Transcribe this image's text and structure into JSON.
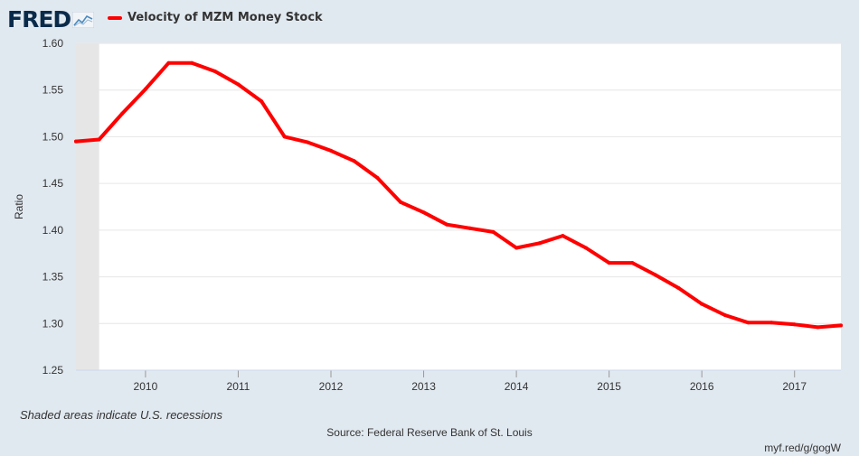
{
  "header": {
    "logo_text": "FRED"
  },
  "colors": {
    "series": "#ff0000",
    "plot_bg": "#ffffff",
    "recession_shade": "#e6e6e6",
    "page_bg": "#e1e9f0",
    "grid": "#e6e6e6"
  },
  "icons": {
    "logo": "fred-logo-chart-icon"
  },
  "footer": {
    "recession_note": "Shaded areas indicate U.S. recessions",
    "source": "Source: Federal Reserve Bank of St. Louis",
    "short_url": "myf.red/g/gogW"
  },
  "chart_data": {
    "type": "line",
    "title": "",
    "xlabel": "",
    "ylabel": "Ratio",
    "xlim": [
      2009.25,
      2017.5
    ],
    "ylim": [
      1.25,
      1.6
    ],
    "yticks": [
      "1.25",
      "1.30",
      "1.35",
      "1.40",
      "1.45",
      "1.50",
      "1.55",
      "1.60"
    ],
    "xticks": [
      "2010",
      "2011",
      "2012",
      "2013",
      "2014",
      "2015",
      "2016",
      "2017"
    ],
    "grid": true,
    "legend": "top-left",
    "recessions": [
      [
        2009.25,
        2009.5
      ]
    ],
    "series": [
      {
        "name": "Velocity of MZM Money Stock",
        "x": [
          2009.25,
          2009.5,
          2009.75,
          2010.0,
          2010.25,
          2010.5,
          2010.75,
          2011.0,
          2011.25,
          2011.5,
          2011.75,
          2012.0,
          2012.25,
          2012.5,
          2012.75,
          2013.0,
          2013.25,
          2013.5,
          2013.75,
          2014.0,
          2014.25,
          2014.5,
          2014.75,
          2015.0,
          2015.25,
          2015.5,
          2015.75,
          2016.0,
          2016.25,
          2016.5,
          2016.75,
          2017.0,
          2017.25,
          2017.5
        ],
        "y": [
          1.495,
          1.497,
          1.525,
          1.551,
          1.579,
          1.579,
          1.57,
          1.556,
          1.538,
          1.5,
          1.494,
          1.485,
          1.474,
          1.456,
          1.43,
          1.419,
          1.406,
          1.402,
          1.398,
          1.381,
          1.386,
          1.394,
          1.381,
          1.365,
          1.365,
          1.352,
          1.338,
          1.321,
          1.309,
          1.301,
          1.301,
          1.299,
          1.296,
          1.298
        ]
      }
    ]
  }
}
